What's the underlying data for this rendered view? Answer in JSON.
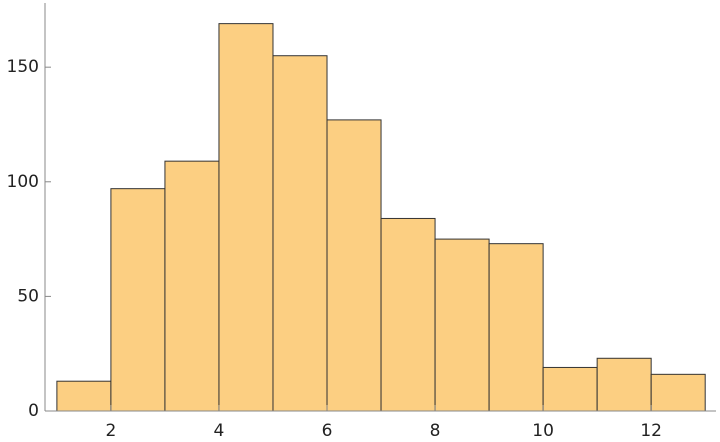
{
  "chart_data": {
    "type": "histogram",
    "bins": [
      1,
      2,
      3,
      4,
      5,
      6,
      7,
      8,
      9,
      10,
      11,
      12,
      13
    ],
    "values": [
      13,
      97,
      109,
      169,
      155,
      127,
      84,
      75,
      73,
      19,
      23,
      16
    ],
    "color": "#fccf82",
    "xlim": [
      0.78,
      13.2
    ],
    "ylim": [
      0,
      178
    ],
    "xticks": [
      2,
      4,
      6,
      8,
      10,
      12
    ],
    "yticks": [
      0,
      50,
      100,
      150
    ]
  }
}
